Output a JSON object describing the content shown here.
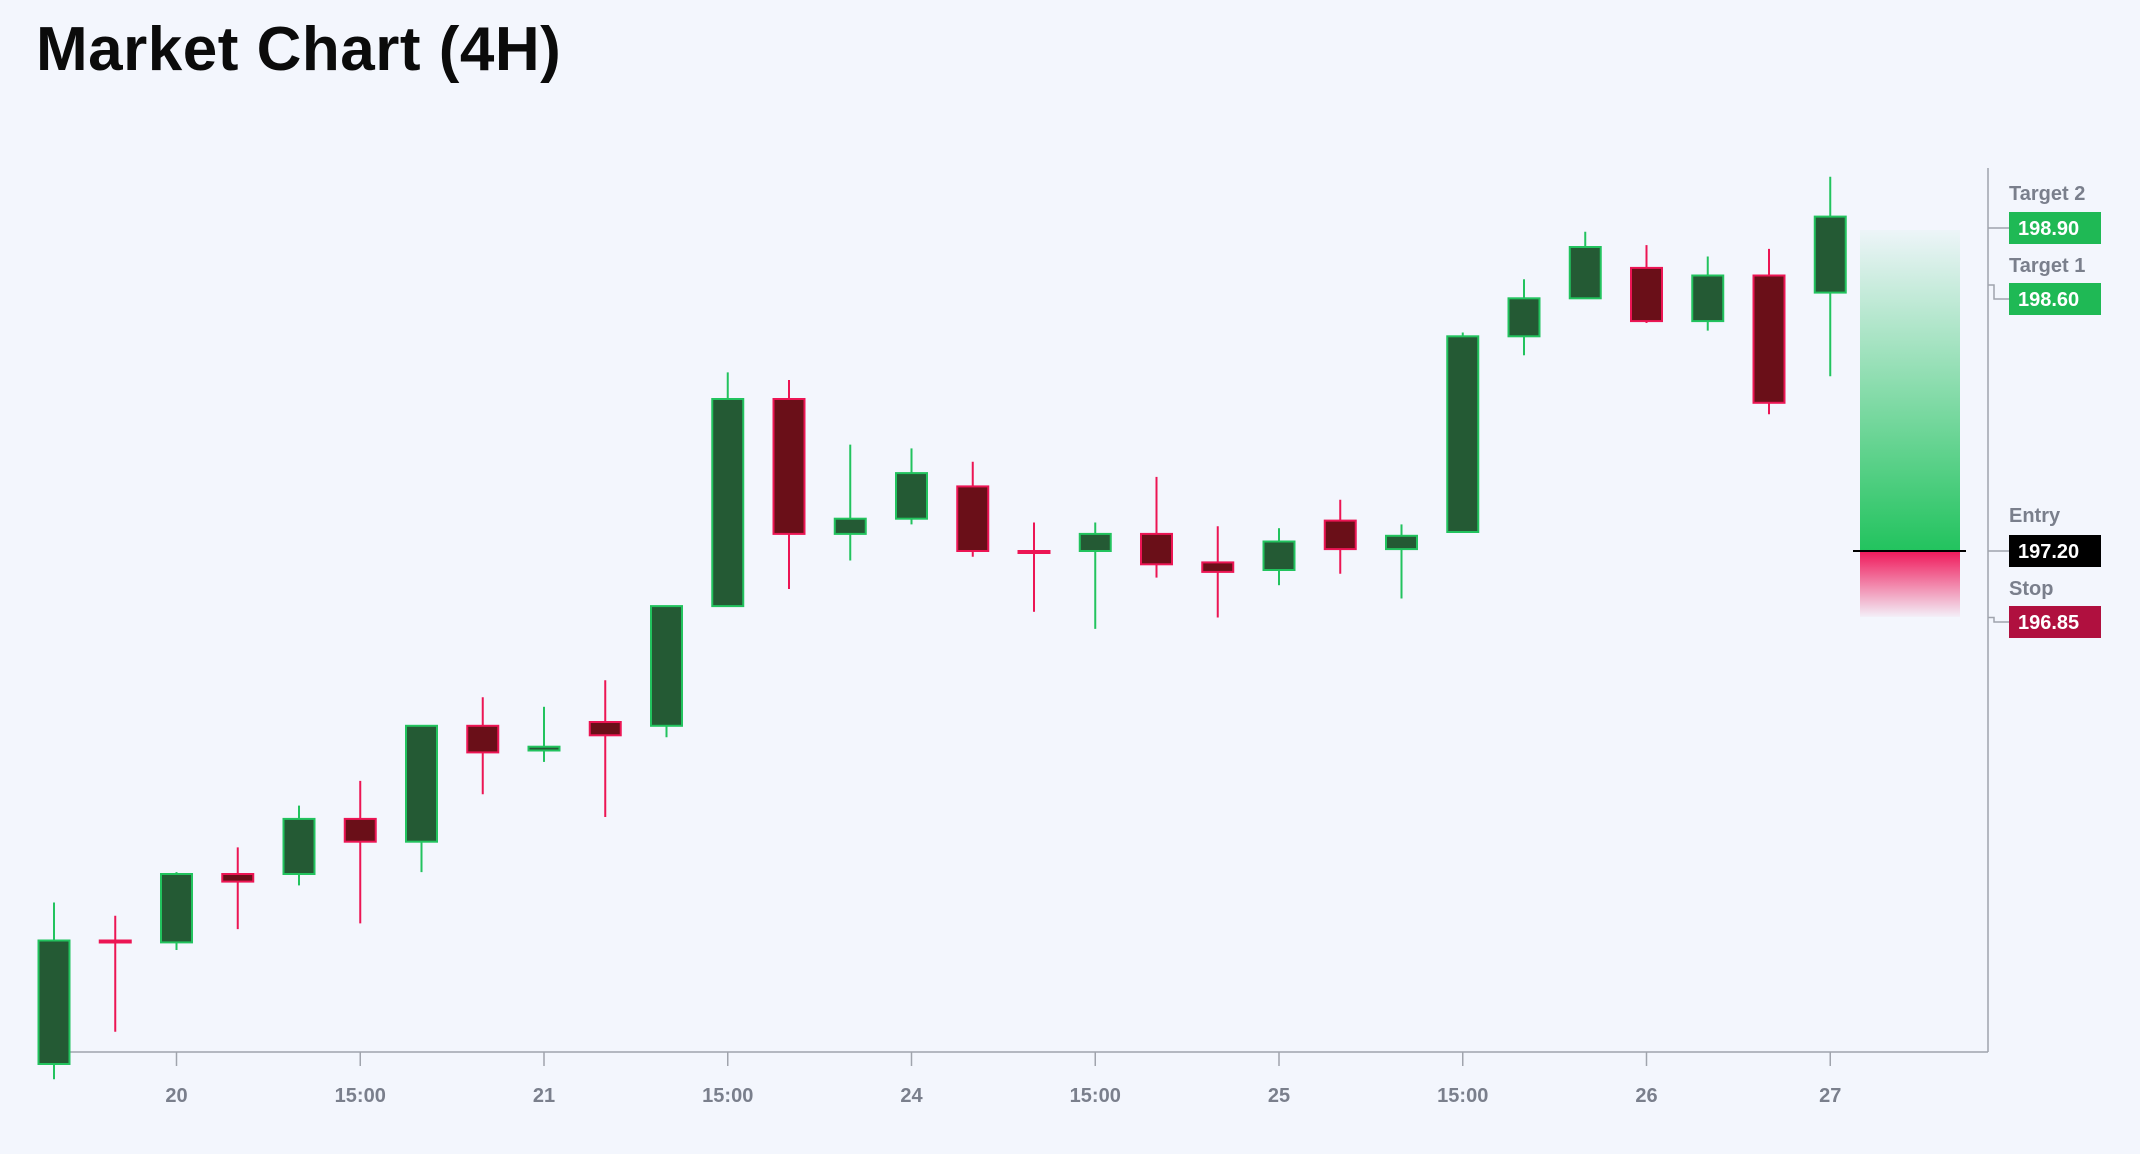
{
  "title": "Market Chart (4H)",
  "colors": {
    "background": "#f3f6fd",
    "up_body": "#245a34",
    "up_border": "#22c35e",
    "down_body": "#6a0f18",
    "down_border": "#ec1554",
    "target": "#1fb955",
    "entry": "#000000",
    "stop": "#b0103f",
    "axis": "#a0a4ad"
  },
  "chart_data": {
    "type": "candlestick",
    "title": "Market Chart (4H)",
    "x_ticks": [
      "20",
      "15:00",
      "21",
      "15:00",
      "24",
      "15:00",
      "25",
      "15:00",
      "26",
      "27"
    ],
    "ylim": [
      194.0,
      199.5
    ],
    "grid": false,
    "candles": [
      {
        "open": 194.5,
        "high": 195.35,
        "low": 194.42,
        "close": 195.15
      },
      {
        "open": 195.15,
        "high": 195.28,
        "low": 194.67,
        "close": 195.14
      },
      {
        "open": 195.14,
        "high": 195.51,
        "low": 195.1,
        "close": 195.5
      },
      {
        "open": 195.5,
        "high": 195.64,
        "low": 195.21,
        "close": 195.46
      },
      {
        "open": 195.5,
        "high": 195.86,
        "low": 195.44,
        "close": 195.79
      },
      {
        "open": 195.79,
        "high": 195.99,
        "low": 195.24,
        "close": 195.67
      },
      {
        "open": 195.67,
        "high": 196.28,
        "low": 195.51,
        "close": 196.28
      },
      {
        "open": 196.28,
        "high": 196.43,
        "low": 195.92,
        "close": 196.14
      },
      {
        "open": 196.15,
        "high": 196.38,
        "low": 196.09,
        "close": 196.17
      },
      {
        "open": 196.3,
        "high": 196.52,
        "low": 195.8,
        "close": 196.23
      },
      {
        "open": 196.28,
        "high": 196.9,
        "low": 196.22,
        "close": 196.91
      },
      {
        "open": 196.91,
        "high": 198.14,
        "low": 196.91,
        "close": 198.0
      },
      {
        "open": 198.0,
        "high": 198.1,
        "low": 197.0,
        "close": 197.29
      },
      {
        "open": 197.29,
        "high": 197.76,
        "low": 197.15,
        "close": 197.37
      },
      {
        "open": 197.37,
        "high": 197.74,
        "low": 197.34,
        "close": 197.61
      },
      {
        "open": 197.54,
        "high": 197.67,
        "low": 197.17,
        "close": 197.2
      },
      {
        "open": 197.2,
        "high": 197.35,
        "low": 196.88,
        "close": 197.19
      },
      {
        "open": 197.2,
        "high": 197.35,
        "low": 196.79,
        "close": 197.29
      },
      {
        "open": 197.29,
        "high": 197.59,
        "low": 197.06,
        "close": 197.13
      },
      {
        "open": 197.14,
        "high": 197.33,
        "low": 196.85,
        "close": 197.09
      },
      {
        "open": 197.1,
        "high": 197.32,
        "low": 197.02,
        "close": 197.25
      },
      {
        "open": 197.36,
        "high": 197.47,
        "low": 197.08,
        "close": 197.21
      },
      {
        "open": 197.21,
        "high": 197.34,
        "low": 196.95,
        "close": 197.28
      },
      {
        "open": 197.3,
        "high": 198.35,
        "low": 197.3,
        "close": 198.33
      },
      {
        "open": 198.33,
        "high": 198.63,
        "low": 198.23,
        "close": 198.53
      },
      {
        "open": 198.53,
        "high": 198.88,
        "low": 198.53,
        "close": 198.8
      },
      {
        "open": 198.69,
        "high": 198.81,
        "low": 198.4,
        "close": 198.41
      },
      {
        "open": 198.41,
        "high": 198.75,
        "low": 198.36,
        "close": 198.65
      },
      {
        "open": 198.65,
        "high": 198.79,
        "low": 197.92,
        "close": 197.98
      },
      {
        "open": 198.56,
        "high": 199.17,
        "low": 198.12,
        "close": 198.96
      }
    ],
    "tick_positions": [
      2,
      5,
      8,
      11,
      14,
      17,
      20,
      23,
      26,
      29
    ],
    "levels": [
      {
        "name": "Target 2",
        "value": "198.90",
        "price": 198.9,
        "kind": "target"
      },
      {
        "name": "Target 1",
        "value": "198.60",
        "price": 198.6,
        "kind": "target"
      },
      {
        "name": "Entry",
        "value": "197.20",
        "price": 197.2,
        "kind": "entry"
      },
      {
        "name": "Stop",
        "value": "196.85",
        "price": 196.85,
        "kind": "stop"
      }
    ]
  }
}
